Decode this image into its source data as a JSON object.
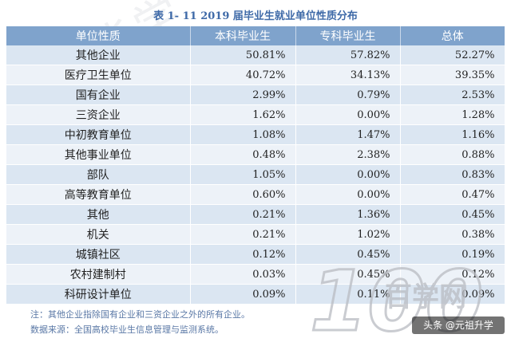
{
  "watermark_text": "华学",
  "title": "表 1- 11    2019 届毕业生就业单位性质分布",
  "table": {
    "headers": [
      "单位性质",
      "本科毕业生",
      "专科毕业生",
      "总体"
    ],
    "rows": [
      [
        "其他企业",
        "50.81%",
        "57.82%",
        "52.27%"
      ],
      [
        "医疗卫生单位",
        "40.72%",
        "34.13%",
        "39.35%"
      ],
      [
        "国有企业",
        "2.99%",
        "0.79%",
        "2.53%"
      ],
      [
        "三资企业",
        "1.62%",
        "0.00%",
        "1.28%"
      ],
      [
        "中初教育单位",
        "1.08%",
        "1.47%",
        "1.16%"
      ],
      [
        "其他事业单位",
        "0.48%",
        "2.38%",
        "0.88%"
      ],
      [
        "部队",
        "1.05%",
        "0.00%",
        "0.83%"
      ],
      [
        "高等教育单位",
        "0.60%",
        "0.00%",
        "0.47%"
      ],
      [
        "其他",
        "0.21%",
        "1.36%",
        "0.45%"
      ],
      [
        "机关",
        "0.21%",
        "1.02%",
        "0.38%"
      ],
      [
        "城镇社区",
        "0.12%",
        "0.45%",
        "0.19%"
      ],
      [
        "农村建制村",
        "0.03%",
        "0.45%",
        "0.12%"
      ],
      [
        "科研设计单位",
        "0.09%",
        "0.11%",
        "0.09%"
      ]
    ]
  },
  "footnotes": {
    "note": "注：其他企业指除国有企业和三资企业之外的所有企业。",
    "source": "数据来源：全国高校毕业生信息管理与监测系统。"
  },
  "logo": {
    "number": "100",
    "text": "百学网"
  },
  "brand_tag": "头条 @元祖升学",
  "colors": {
    "header_bg": "#7fa3cc",
    "row_odd": "#dbe6f2",
    "row_even": "#edf2f8",
    "title": "#3f6aa8",
    "logo": "#b9bcc2"
  }
}
